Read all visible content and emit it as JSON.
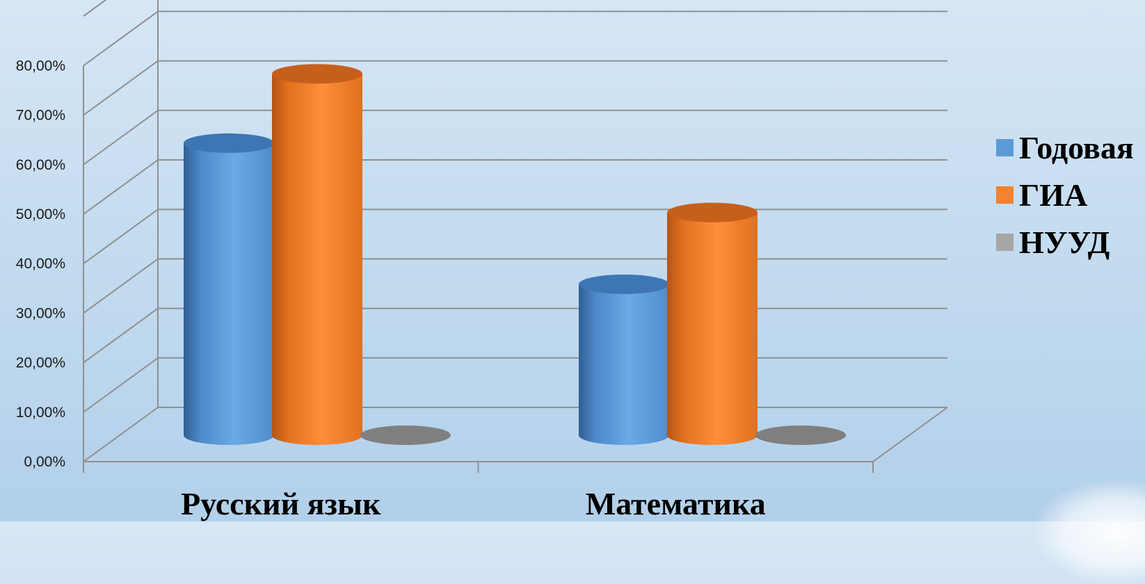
{
  "chart_data": {
    "type": "bar",
    "style": "3d-cylinder",
    "categories": [
      "Русский язык",
      "Математика"
    ],
    "series": [
      {
        "name": "Годовая",
        "values": [
          59.0,
          30.5
        ],
        "color": "#5b9bd5"
      },
      {
        "name": "ГИА",
        "values": [
          73.0,
          45.0
        ],
        "color": "#f5822c"
      },
      {
        "name": "НУУД",
        "values": [
          0.0,
          0.0
        ],
        "color": "#8c8c8c"
      }
    ],
    "y_ticks": [
      "0,00%",
      "10,00%",
      "20,00%",
      "30,00%",
      "40,00%",
      "50,00%",
      "60,00%",
      "70,00%",
      "80,00%"
    ],
    "ylim": [
      0,
      90
    ],
    "grid": true,
    "legend_position": "right"
  }
}
